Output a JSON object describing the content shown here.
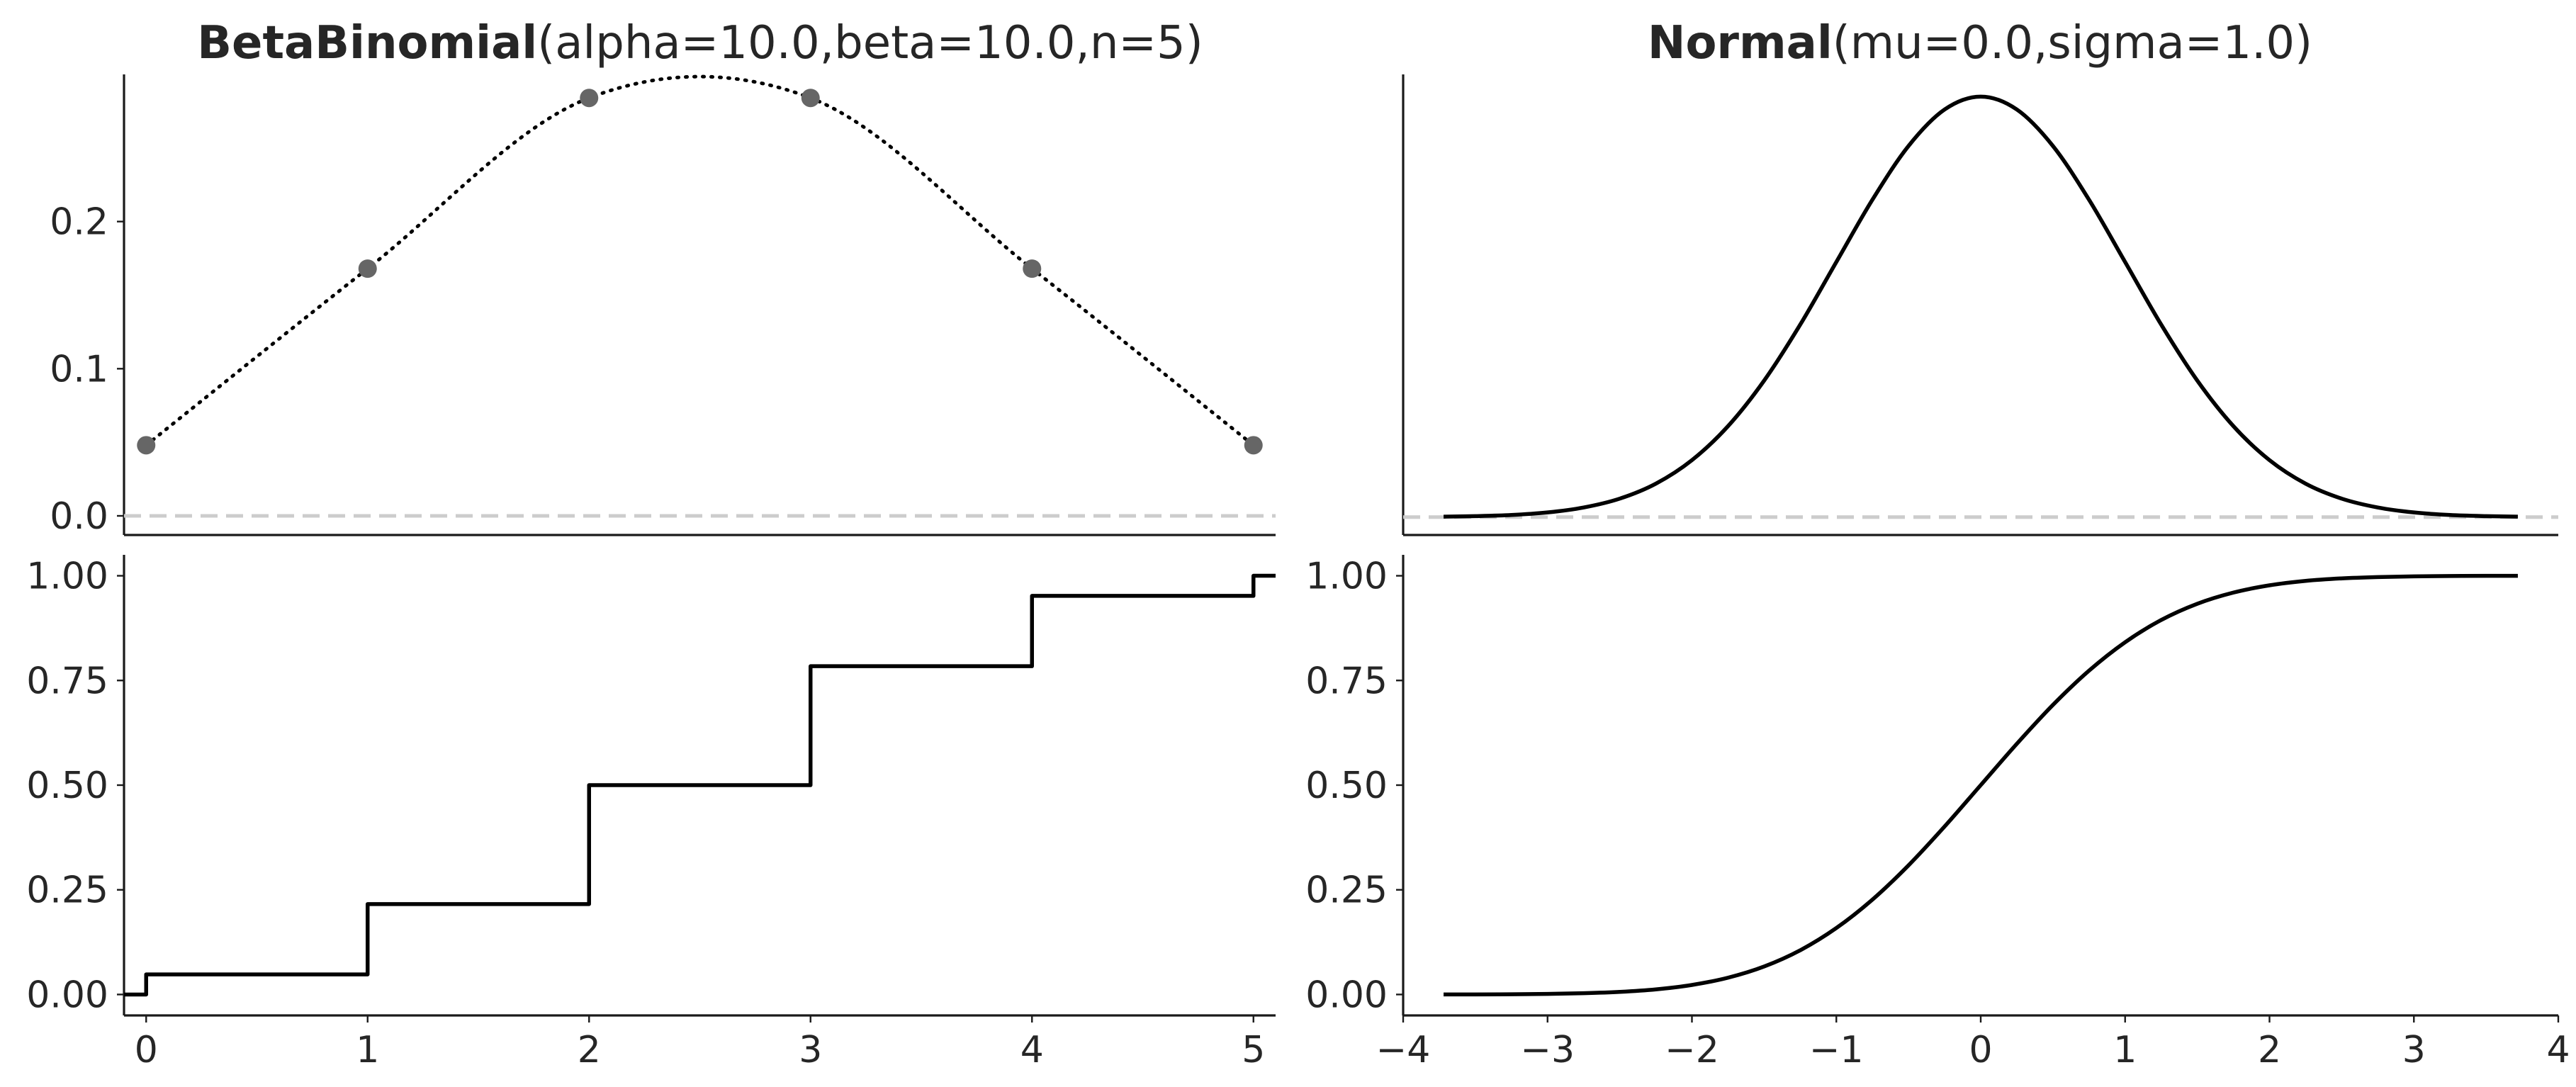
{
  "chart_data": [
    {
      "id": "betabinom_pmf",
      "type": "scatter",
      "title_bold": "BetaBinomial",
      "title_params": "(alpha=10.0,beta=10.0,n=5)",
      "x": [
        0,
        1,
        2,
        3,
        4,
        5
      ],
      "y": [
        0.048,
        0.168,
        0.284,
        0.284,
        0.168,
        0.048
      ],
      "xlim": [
        -0.1,
        5.1
      ],
      "ylim": [
        -0.013,
        0.3
      ],
      "yticks": [
        0.0,
        0.1,
        0.2
      ],
      "ytick_labels": [
        "0.0",
        "0.1",
        "0.2"
      ],
      "xticks": [],
      "baseline": 0,
      "line_style": "dotted",
      "marker_color": "#666666",
      "grid": false
    },
    {
      "id": "normal_pdf",
      "type": "line",
      "x": [
        -3.72,
        -3.5,
        -3.25,
        -3.0,
        -2.75,
        -2.5,
        -2.25,
        -2.0,
        -1.75,
        -1.5,
        -1.25,
        -1.0,
        -0.75,
        -0.5,
        -0.25,
        0.0,
        0.25,
        0.5,
        0.75,
        1.0,
        1.25,
        1.5,
        1.75,
        2.0,
        2.25,
        2.5,
        2.75,
        3.0,
        3.25,
        3.5,
        3.72
      ],
      "y": [
        0.0004,
        0.0009,
        0.002,
        0.0044,
        0.0091,
        0.0175,
        0.0317,
        0.054,
        0.0863,
        0.1295,
        0.1826,
        0.242,
        0.3011,
        0.3521,
        0.3867,
        0.3989,
        0.3867,
        0.3521,
        0.3011,
        0.242,
        0.1826,
        0.1295,
        0.0863,
        0.054,
        0.0317,
        0.0175,
        0.0091,
        0.0044,
        0.002,
        0.0009,
        0.0004
      ],
      "title_bold": "Normal",
      "title_params": "(mu=0.0,sigma=1.0)",
      "xlim": [
        -4,
        4
      ],
      "ylim": [
        -0.017,
        0.42
      ],
      "yticks": [],
      "xticks": [],
      "baseline": 0,
      "line_color": "#000000",
      "grid": false
    },
    {
      "id": "betabinom_cdf",
      "type": "line",
      "step": true,
      "x": [
        -0.1,
        0,
        1,
        2,
        3,
        4,
        5,
        5.1
      ],
      "y": [
        0.0,
        0.048,
        0.216,
        0.5,
        0.784,
        0.952,
        1.0,
        1.0
      ],
      "xlim": [
        -0.1,
        5.1
      ],
      "ylim": [
        -0.05,
        1.05
      ],
      "yticks": [
        0.0,
        0.25,
        0.5,
        0.75,
        1.0
      ],
      "ytick_labels": [
        "0.00",
        "0.25",
        "0.50",
        "0.75",
        "1.00"
      ],
      "xticks": [
        0,
        1,
        2,
        3,
        4,
        5
      ],
      "xtick_labels": [
        "0",
        "1",
        "2",
        "3",
        "4",
        "5"
      ],
      "line_color": "#000000",
      "grid": false
    },
    {
      "id": "normal_cdf",
      "type": "line",
      "x": [
        -3.72,
        -3.5,
        -3.25,
        -3.0,
        -2.75,
        -2.5,
        -2.25,
        -2.0,
        -1.75,
        -1.5,
        -1.25,
        -1.0,
        -0.75,
        -0.5,
        -0.25,
        0.0,
        0.25,
        0.5,
        0.75,
        1.0,
        1.25,
        1.5,
        1.75,
        2.0,
        2.25,
        2.5,
        2.75,
        3.0,
        3.25,
        3.5,
        3.72
      ],
      "y": [
        0.0001,
        0.0002,
        0.0006,
        0.0013,
        0.003,
        0.0062,
        0.0122,
        0.0228,
        0.0401,
        0.0668,
        0.1056,
        0.1587,
        0.2266,
        0.3085,
        0.4013,
        0.5,
        0.5987,
        0.6915,
        0.7734,
        0.8413,
        0.8944,
        0.9332,
        0.9599,
        0.9772,
        0.9878,
        0.9938,
        0.997,
        0.9987,
        0.9994,
        0.9998,
        0.9999
      ],
      "xlim": [
        -4,
        4
      ],
      "ylim": [
        -0.05,
        1.05
      ],
      "yticks": [
        0.0,
        0.25,
        0.5,
        0.75,
        1.0
      ],
      "ytick_labels": [
        "0.00",
        "0.25",
        "0.50",
        "0.75",
        "1.00"
      ],
      "xticks": [
        -4,
        -3,
        -2,
        -1,
        0,
        1,
        2,
        3,
        4
      ],
      "xtick_labels": [
        "−4",
        "−3",
        "−2",
        "−1",
        "0",
        "1",
        "2",
        "3",
        "4"
      ],
      "line_color": "#000000",
      "grid": false
    }
  ]
}
